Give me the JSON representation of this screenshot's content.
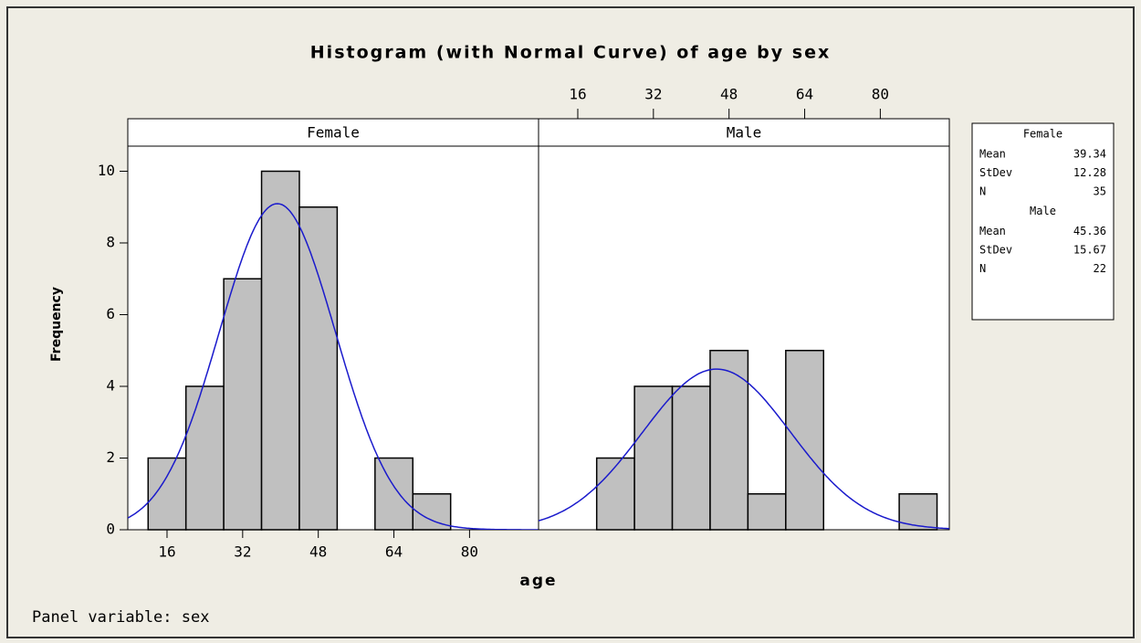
{
  "chart_data": {
    "type": "histogram",
    "title": "Histogram (with Normal Curve) of age by sex",
    "xlabel": "age",
    "ylabel": "Frequency",
    "footnote": "Panel variable: sex",
    "xlim": [
      7.7,
      94.6
    ],
    "xticks": [
      16,
      32,
      48,
      64,
      80
    ],
    "ylim": [
      0,
      10.7
    ],
    "yticks": [
      0,
      2,
      4,
      6,
      8,
      10
    ],
    "bar_color": "#c0c0c0",
    "curve_color": "#1a1acc",
    "stats_labels": [
      "Mean",
      "StDev",
      "N"
    ],
    "panels": [
      {
        "name": "Female",
        "bins": [
          12,
          20,
          28,
          36,
          44,
          52,
          60,
          68,
          76,
          84
        ],
        "counts": [
          2,
          4,
          7,
          10,
          9,
          0,
          2,
          1,
          0
        ],
        "mean": 39.34,
        "stdev": 12.28,
        "n": 35
      },
      {
        "name": "Male",
        "bins": [
          20,
          28,
          36,
          44,
          52,
          60,
          68,
          76,
          84,
          92
        ],
        "counts": [
          2,
          4,
          4,
          5,
          1,
          5,
          0,
          0,
          1
        ],
        "mean": 45.36,
        "stdev": 15.67,
        "n": 22
      }
    ]
  }
}
